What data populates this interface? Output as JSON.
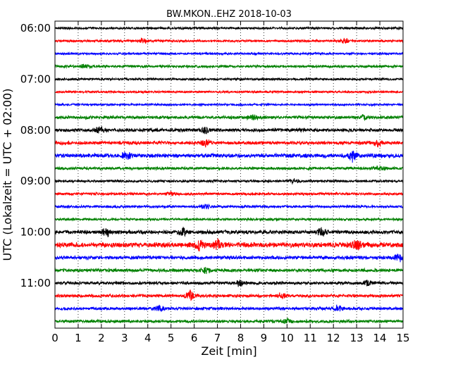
{
  "chart_data": {
    "type": "line",
    "title": "BW.MKON..EHZ 2018-10-03",
    "xlabel": "Zeit  [min]",
    "ylabel": "UTC (Lokalzeit = UTC + 02:00)",
    "xlim": [
      0,
      15
    ],
    "x_ticks": [
      "0",
      "1",
      "2",
      "3",
      "4",
      "5",
      "6",
      "7",
      "8",
      "9",
      "10",
      "11",
      "12",
      "13",
      "14",
      "15"
    ],
    "y_tick_labels": [
      "06:00",
      "07:00",
      "08:00",
      "09:00",
      "10:00",
      "11:00"
    ],
    "grid": "vertical dotted",
    "trace_colors": [
      "#000000",
      "#ff0000",
      "#0000ff",
      "#008000"
    ],
    "traces": [
      {
        "start": "06:00",
        "color": "#000000",
        "amplitude": 0.18,
        "bursts": []
      },
      {
        "start": "06:15",
        "color": "#ff0000",
        "amplitude": 0.18,
        "bursts": [
          [
            3.8,
            0.35
          ],
          [
            12.5,
            0.3
          ]
        ]
      },
      {
        "start": "06:30",
        "color": "#0000ff",
        "amplitude": 0.17,
        "bursts": []
      },
      {
        "start": "06:45",
        "color": "#008000",
        "amplitude": 0.2,
        "bursts": [
          [
            1.3,
            0.25
          ]
        ]
      },
      {
        "start": "07:00",
        "color": "#000000",
        "amplitude": 0.17,
        "bursts": []
      },
      {
        "start": "07:15",
        "color": "#ff0000",
        "amplitude": 0.17,
        "bursts": []
      },
      {
        "start": "07:30",
        "color": "#0000ff",
        "amplitude": 0.16,
        "bursts": []
      },
      {
        "start": "07:45",
        "color": "#008000",
        "amplitude": 0.25,
        "bursts": [
          [
            8.5,
            0.35
          ],
          [
            13.3,
            0.45
          ]
        ]
      },
      {
        "start": "08:00",
        "color": "#000000",
        "amplitude": 0.27,
        "bursts": [
          [
            1.9,
            0.5
          ],
          [
            6.5,
            0.4
          ]
        ]
      },
      {
        "start": "08:15",
        "color": "#ff0000",
        "amplitude": 0.27,
        "bursts": [
          [
            6.5,
            0.5
          ],
          [
            13.9,
            0.55
          ]
        ]
      },
      {
        "start": "08:30",
        "color": "#0000ff",
        "amplitude": 0.32,
        "bursts": [
          [
            3.1,
            0.65
          ],
          [
            12.8,
            0.8
          ]
        ]
      },
      {
        "start": "08:45",
        "color": "#008000",
        "amplitude": 0.22,
        "bursts": [
          [
            14.0,
            0.4
          ]
        ]
      },
      {
        "start": "09:00",
        "color": "#000000",
        "amplitude": 0.19,
        "bursts": [
          [
            10.3,
            0.35
          ]
        ]
      },
      {
        "start": "09:15",
        "color": "#ff0000",
        "amplitude": 0.2,
        "bursts": [
          [
            5.0,
            0.3
          ]
        ]
      },
      {
        "start": "09:30",
        "color": "#0000ff",
        "amplitude": 0.2,
        "bursts": [
          [
            6.5,
            0.35
          ]
        ]
      },
      {
        "start": "09:45",
        "color": "#008000",
        "amplitude": 0.19,
        "bursts": []
      },
      {
        "start": "10:00",
        "color": "#000000",
        "amplitude": 0.3,
        "bursts": [
          [
            2.2,
            0.55
          ],
          [
            5.5,
            0.5
          ],
          [
            11.5,
            0.55
          ]
        ]
      },
      {
        "start": "10:15",
        "color": "#ff0000",
        "amplitude": 0.4,
        "bursts": [
          [
            6.2,
            0.75
          ],
          [
            7.0,
            0.8
          ],
          [
            13.0,
            0.6
          ]
        ]
      },
      {
        "start": "10:30",
        "color": "#0000ff",
        "amplitude": 0.28,
        "bursts": [
          [
            14.8,
            0.55
          ]
        ]
      },
      {
        "start": "10:45",
        "color": "#008000",
        "amplitude": 0.27,
        "bursts": [
          [
            6.5,
            0.45
          ]
        ]
      },
      {
        "start": "11:00",
        "color": "#000000",
        "amplitude": 0.24,
        "bursts": [
          [
            8.0,
            0.45
          ],
          [
            13.5,
            0.45
          ]
        ]
      },
      {
        "start": "11:15",
        "color": "#ff0000",
        "amplitude": 0.24,
        "bursts": [
          [
            5.8,
            0.7
          ],
          [
            9.8,
            0.4
          ]
        ]
      },
      {
        "start": "11:30",
        "color": "#0000ff",
        "amplitude": 0.24,
        "bursts": [
          [
            4.5,
            0.4
          ],
          [
            12.2,
            0.4
          ]
        ]
      },
      {
        "start": "11:45",
        "color": "#008000",
        "amplitude": 0.23,
        "bursts": [
          [
            10.0,
            0.3
          ]
        ]
      }
    ]
  }
}
